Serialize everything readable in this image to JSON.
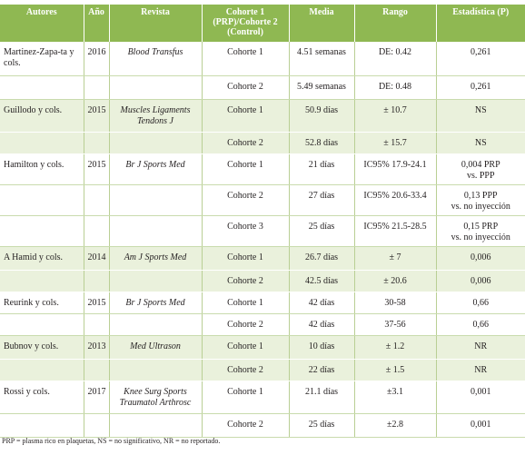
{
  "table": {
    "headers": [
      "Autores",
      "Año",
      "Revista",
      "Cohorte 1\n(PRP)/Cohorte 2\n(Control)",
      "Media",
      "Rango",
      "Estadística (P)"
    ],
    "studies": [
      {
        "author": "Martinez-Zapa-ta y cols.",
        "year": "2016",
        "journal": "Blood Transfus",
        "cohorts": [
          {
            "cohort": "Cohorte 1",
            "mean": "4.51 semanas",
            "range": "DE: 0.42",
            "stat": "0,261"
          },
          {
            "cohort": "Cohorte 2",
            "mean": "5.49 semanas",
            "range": "DE: 0.48",
            "stat": "0,261"
          }
        ]
      },
      {
        "author": "Guillodo y cols.",
        "year": "2015",
        "journal": "Muscles Ligaments\nTendons J",
        "cohorts": [
          {
            "cohort": "Cohorte 1",
            "mean": "50.9 días",
            "range": "± 10.7",
            "stat": "NS"
          },
          {
            "cohort": "Cohorte 2",
            "mean": "52.8 días",
            "range": "± 15.7",
            "stat": "NS"
          }
        ]
      },
      {
        "author": "Hamilton y cols.",
        "year": "2015",
        "journal": "Br J Sports Med",
        "cohorts": [
          {
            "cohort": "Cohorte 1",
            "mean": "21 días",
            "range": "IC95% 17.9-24.1",
            "stat": "0,004 PRP\nvs. PPP"
          },
          {
            "cohort": "Cohorte 2",
            "mean": "27 días",
            "range": "IC95% 20.6-33.4",
            "stat": "0,13 PPP\nvs. no inyección"
          },
          {
            "cohort": "Cohorte 3",
            "mean": "25 días",
            "range": "IC95% 21.5-28.5",
            "stat": "0,15 PRP\nvs. no inyección"
          }
        ]
      },
      {
        "author": "A Hamid y cols.",
        "year": "2014",
        "journal": "Am J Sports Med",
        "cohorts": [
          {
            "cohort": "Cohorte 1",
            "mean": "26.7 días",
            "range": "± 7",
            "stat": "0,006"
          },
          {
            "cohort": "Cohorte 2",
            "mean": "42.5 días",
            "range": "± 20.6",
            "stat": "0,006"
          }
        ]
      },
      {
        "author": "Reurink y cols.",
        "year": "2015",
        "journal": "Br J Sports Med",
        "cohorts": [
          {
            "cohort": "Cohorte 1",
            "mean": "42 días",
            "range": "30-58",
            "stat": "0,66"
          },
          {
            "cohort": "Cohorte 2",
            "mean": "42 días",
            "range": "37-56",
            "stat": "0,66"
          }
        ]
      },
      {
        "author": "Bubnov y cols.",
        "year": "2013",
        "journal": "Med Ultrason",
        "cohorts": [
          {
            "cohort": "Cohorte 1",
            "mean": "10 días",
            "range": "± 1.2",
            "stat": "NR"
          },
          {
            "cohort": "Cohorte 2",
            "mean": "22 días",
            "range": "± 1.5",
            "stat": "NR"
          }
        ]
      },
      {
        "author": "Rossi y cols.",
        "year": "2017",
        "journal": "Knee Surg Sports\nTraumatol Arthrosc",
        "cohorts": [
          {
            "cohort": "Cohorte 1",
            "mean": "21.1 días",
            "range": "±3.1",
            "stat": "0,001"
          },
          {
            "cohort": "Cohorte 2",
            "mean": "25 días",
            "range": "±2.8",
            "stat": "0,001"
          }
        ]
      }
    ],
    "footnote": "PRP = plasma rico en plaquetas, NS = no significativo, NR = no reportado."
  }
}
